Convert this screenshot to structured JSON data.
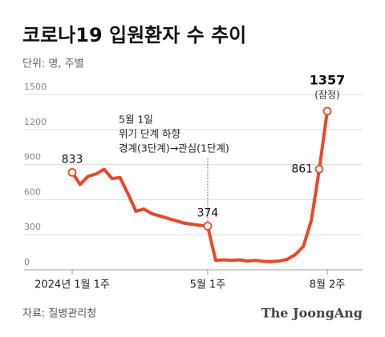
{
  "chart_data": {
    "type": "line",
    "title": "코로나19 입원환자 수 추이",
    "subtitle": "단위: 명, 주별",
    "categories": [
      "2024년 1월 1주",
      null,
      null,
      null,
      null,
      null,
      null,
      null,
      null,
      null,
      null,
      null,
      null,
      null,
      null,
      null,
      null,
      "5월 1주",
      null,
      null,
      null,
      null,
      null,
      null,
      null,
      null,
      null,
      null,
      null,
      null,
      null,
      null,
      "8월 2주"
    ],
    "series": [
      {
        "name": "입원환자 수",
        "color": "#e8482a",
        "values": [
          833,
          730,
          800,
          820,
          860,
          780,
          790,
          650,
          500,
          520,
          480,
          460,
          440,
          420,
          400,
          390,
          380,
          374,
          80,
          85,
          80,
          85,
          75,
          80,
          72,
          70,
          75,
          90,
          130,
          200,
          420,
          861,
          1357
        ]
      }
    ],
    "labeled_points": [
      0,
      17,
      31,
      32
    ],
    "point_note": "(잠정)",
    "annotation": [
      "5월 1일",
      "위기 단계 하향",
      "경계(3단계)→관심(1단계)"
    ],
    "annotation_index": 17,
    "ylim": [
      0,
      1500
    ],
    "yticks": [
      0,
      300,
      600,
      900,
      1200,
      1500
    ],
    "grid": true,
    "source": "자료: 질병관리청",
    "brand": "The JoongAng"
  }
}
